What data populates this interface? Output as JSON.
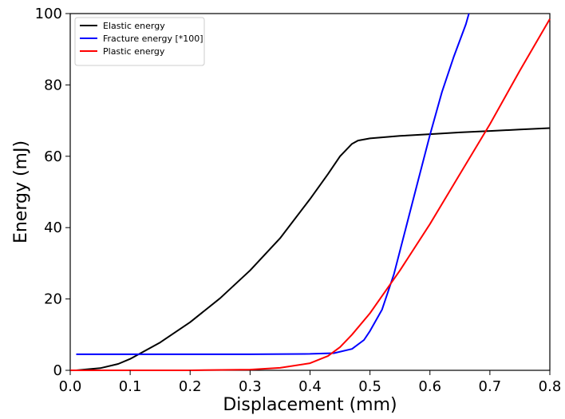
{
  "chart_data": {
    "type": "line",
    "title": "",
    "xlabel": "Displacement (mm)",
    "ylabel": "Energy (mJ)",
    "xlim": [
      0.0,
      0.8
    ],
    "ylim": [
      0,
      100
    ],
    "xticks": [
      "0.0",
      "0.1",
      "0.2",
      "0.3",
      "0.4",
      "0.5",
      "0.6",
      "0.7",
      "0.8"
    ],
    "yticks": [
      "0",
      "20",
      "40",
      "60",
      "80",
      "100"
    ],
    "grid": false,
    "legend_position": "top-left",
    "series": [
      {
        "name": "Elastic energy",
        "color": "#000000",
        "x": [
          0.01,
          0.05,
          0.08,
          0.1,
          0.15,
          0.2,
          0.25,
          0.3,
          0.35,
          0.4,
          0.43,
          0.45,
          0.47,
          0.48,
          0.5,
          0.55,
          0.6,
          0.65,
          0.7,
          0.75,
          0.8
        ],
        "y": [
          0,
          0.6,
          1.8,
          3.2,
          7.8,
          13.5,
          20.2,
          28,
          37,
          48,
          55,
          60,
          63.5,
          64.4,
          65,
          65.7,
          66.2,
          66.7,
          67.1,
          67.5,
          67.9
        ]
      },
      {
        "name": "Fracture energy [*100]",
        "color": "#0000ff",
        "x": [
          0.01,
          0.1,
          0.2,
          0.3,
          0.4,
          0.44,
          0.47,
          0.49,
          0.5,
          0.52,
          0.54,
          0.56,
          0.58,
          0.6,
          0.62,
          0.64,
          0.66,
          0.665
        ],
        "y": [
          4.5,
          4.5,
          4.5,
          4.5,
          4.6,
          4.8,
          6,
          8.5,
          11,
          17,
          27,
          40,
          53,
          66,
          78,
          88,
          97,
          100
        ]
      },
      {
        "name": "Plastic energy",
        "color": "#ff0000",
        "x": [
          0.0,
          0.2,
          0.3,
          0.35,
          0.4,
          0.43,
          0.45,
          0.47,
          0.5,
          0.55,
          0.6,
          0.65,
          0.7,
          0.75,
          0.8
        ],
        "y": [
          0,
          0,
          0.2,
          0.7,
          2,
          4,
          6.5,
          10,
          16,
          28,
          41,
          55,
          69,
          84,
          98.5
        ]
      }
    ]
  }
}
